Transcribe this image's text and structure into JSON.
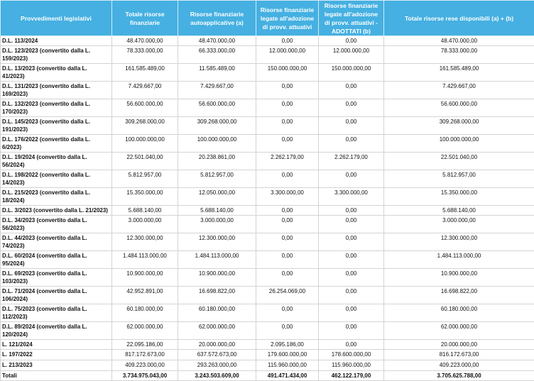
{
  "colors": {
    "header_bg": "#45b0e1",
    "header_text": "#ffffff"
  },
  "headers": [
    "Provvedimenti legislativi",
    "Totale risorse finanziarie",
    "Risorse finanziarie autoapplicative (a)",
    "Risorse finanziarie legate all'adozione di provv. attuativi",
    "Risorse finanziarie legate all'adozione di provv. attuativi - ADOTTATI (b)",
    "Totale risorse rese disponibili (a) + (b)"
  ],
  "rows": [
    [
      "D.L. 113/2024",
      "48.470.000,00",
      "48.470.000,00",
      "0,00",
      "0,00",
      "48.470.000,00"
    ],
    [
      "D.L. 123/2023 (convertito dalla L. 159/2023)",
      "78.333.000,00",
      "66.333.000,00",
      "12.000.000,00",
      "12.000.000,00",
      "78.333.000,00"
    ],
    [
      "D.L. 13/2023 (convertito dalla L. 41/2023)",
      "161.585.489,00",
      "11.585.489,00",
      "150.000.000,00",
      "150.000.000,00",
      "161.585.489,00"
    ],
    [
      "D.L. 131/2023 (convertito dalla L. 169/2023)",
      "7.429.667,00",
      "7.429.667,00",
      "0,00",
      "0,00",
      "7.429.667,00"
    ],
    [
      "D.L. 132/2023 (convertito dalla L. 170/2023)",
      "56.600.000,00",
      "56.600.000,00",
      "0,00",
      "0,00",
      "56.600.000,00"
    ],
    [
      "D.L. 145/2023 (convertito dalla L. 191/2023)",
      "309.268.000,00",
      "309.268.000,00",
      "0,00",
      "0,00",
      "309.268.000,00"
    ],
    [
      "D.L. 176/2022 (convertito dalla L. 6/2023)",
      "100.000.000,00",
      "100.000.000,00",
      "0,00",
      "0,00",
      "100.000.000,00"
    ],
    [
      "D.L. 19/2024 (convertito dalla L. 56/2024)",
      "22.501.040,00",
      "20.238.861,00",
      "2.262.179,00",
      "2.262.179,00",
      "22.501.040,00"
    ],
    [
      "D.L. 198/2022 (convertito dalla L. 14/2023)",
      "5.812.957,00",
      "5.812.957,00",
      "0,00",
      "0,00",
      "5.812.957,00"
    ],
    [
      "D.L. 215/2023 (convertito dalla L. 18/2024)",
      "15.350.000,00",
      "12.050.000,00",
      "3.300.000,00",
      "3.300.000,00",
      "15.350.000,00"
    ],
    [
      "D.L. 3/2023 (convertito dalla L. 21/2023)",
      "5.688.140,00",
      "5.688.140,00",
      "0,00",
      "0,00",
      "5.688.140,00"
    ],
    [
      "D.L. 34/2023 (convertito dalla L. 56/2023)",
      "3.000.000,00",
      "3.000.000,00",
      "0,00",
      "0,00",
      "3.000.000,00"
    ],
    [
      "D.L. 44/2023 (convertito dalla L. 74/2023)",
      "12.300.000,00",
      "12.300.000,00",
      "0,00",
      "0,00",
      "12.300.000,00"
    ],
    [
      "D.L. 60/2024 (convertito dalla L. 95/2024)",
      "1.484.113.000,00",
      "1.484.113.000,00",
      "0,00",
      "0,00",
      "1.484.113.000,00"
    ],
    [
      "D.L. 69/2023 (convertito dalla L. 103/2023)",
      "10.900.000,00",
      "10.900.000,00",
      "0,00",
      "0,00",
      "10.900.000,00"
    ],
    [
      "D.L. 71/2024 (convertito dalla L. 106/2024)",
      "42.952.891,00",
      "16.698.822,00",
      "26.254.069,00",
      "0,00",
      "16.698.822,00"
    ],
    [
      "D.L. 75/2023 (convertito dalla L. 112/2023)",
      "60.180.000,00",
      "60.180.000,00",
      "0,00",
      "0,00",
      "60.180.000,00"
    ],
    [
      "D.L. 89/2024 (convertito dalla L. 120/2024)",
      "62.000.000,00",
      "62.000.000,00",
      "0,00",
      "0,00",
      "62.000.000,00"
    ],
    [
      "L. 121/2024",
      "22.095.186,00",
      "20.000.000,00",
      "2.095.186,00",
      "0,00",
      "20.000.000,00"
    ],
    [
      "L. 197/2022",
      "817.172.673,00",
      "637.572.673,00",
      "179.600.000,00",
      "178.600.000,00",
      "816.172.673,00"
    ],
    [
      "L. 213/2023",
      "409.223.000,00",
      "293.263.000,00",
      "115.960.000,00",
      "115.960.000,00",
      "409.223.000,00"
    ]
  ],
  "totals": [
    "Totali",
    "3.734.975.043,00",
    "3.243.503.609,00",
    "491.471.434,00",
    "462.122.179,00",
    "3.705.625.788,00"
  ]
}
